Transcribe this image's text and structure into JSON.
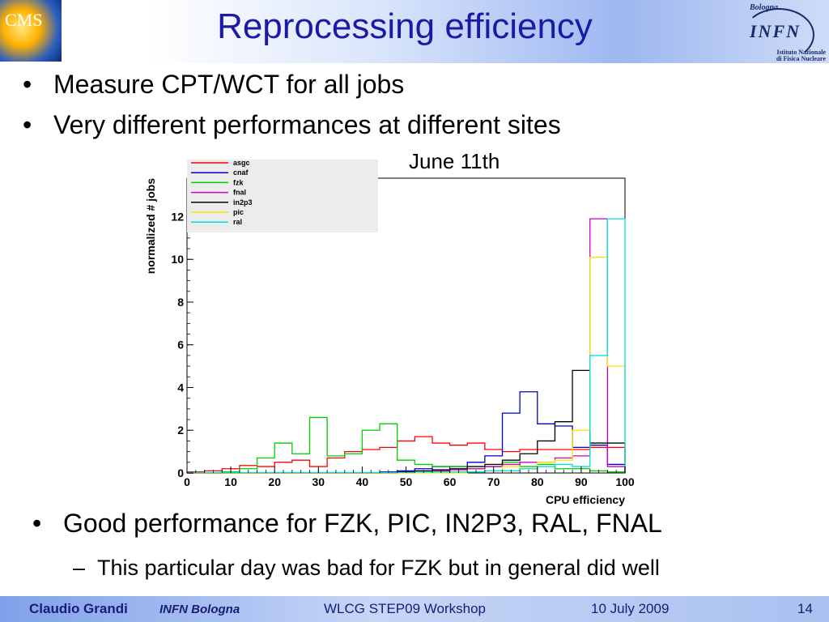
{
  "header": {
    "title": "Reprocessing efficiency",
    "left_logo_text": "CMS",
    "right_logo": {
      "city": "Bologna",
      "name": "INFN",
      "sub1": "Istituto Nazionale",
      "sub2": "di Fisica Nucleare"
    }
  },
  "bullets": [
    "Measure CPT/WCT for all jobs",
    "Very different performances at different sites"
  ],
  "chart_annotation": "June 11th",
  "bullets_after": {
    "main": "Good performance for FZK, PIC, IN2P3, RAL, FNAL",
    "sub": "This particular day was bad for FZK but in general did well"
  },
  "footer": {
    "author": "Claudio Grandi",
    "institution": "INFN Bologna",
    "conference": "WLCG STEP09 Workshop",
    "date": "10 July 2009",
    "page": "14"
  },
  "chart_data": {
    "type": "histogram",
    "xlabel": "CPU efficiency",
    "ylabel": "normalized # jobs",
    "xlim": [
      0,
      100
    ],
    "ylim": [
      0,
      13.8
    ],
    "x_ticks": [
      0,
      10,
      20,
      30,
      40,
      50,
      60,
      70,
      80,
      90,
      100
    ],
    "y_ticks": [
      0,
      2,
      4,
      6,
      8,
      10,
      12
    ],
    "bin_edges": [
      0,
      4,
      8,
      12,
      16,
      20,
      24,
      28,
      32,
      36,
      40,
      44,
      48,
      52,
      56,
      60,
      64,
      68,
      72,
      76,
      80,
      84,
      88,
      92,
      96,
      100
    ],
    "legend_position": "top-left",
    "series": [
      {
        "name": "asgc",
        "color": "#ff0000",
        "values": [
          0.05,
          0.1,
          0.2,
          0.35,
          0.3,
          0.5,
          0.6,
          0.3,
          0.7,
          1.0,
          1.1,
          1.2,
          1.5,
          1.7,
          1.4,
          1.3,
          1.4,
          1.1,
          1.0,
          1.1,
          1.1,
          1.1,
          1.1,
          1.2,
          1.2
        ]
      },
      {
        "name": "cnaf",
        "color": "#0000cc",
        "values": [
          0,
          0,
          0,
          0,
          0,
          0,
          0,
          0,
          0,
          0,
          0,
          0.05,
          0.1,
          0.2,
          0.3,
          0.3,
          0.5,
          0.8,
          2.8,
          3.8,
          2.3,
          2.2,
          1.2,
          1.3,
          0.4
        ]
      },
      {
        "name": "fzk",
        "color": "#00cc00",
        "values": [
          0,
          0,
          0.05,
          0.2,
          0.7,
          1.4,
          0.9,
          2.6,
          0.8,
          0.9,
          2.0,
          2.3,
          0.6,
          0.4,
          0.3,
          0.3,
          0.2,
          0.3,
          0.5,
          0.3,
          0.4,
          0.2,
          0.2,
          0.1,
          0.05
        ]
      },
      {
        "name": "fnal",
        "color": "#cc00cc",
        "values": [
          0,
          0,
          0,
          0,
          0,
          0,
          0,
          0,
          0,
          0,
          0,
          0,
          0.05,
          0.1,
          0.1,
          0.15,
          0.2,
          0.3,
          0.4,
          0.5,
          0.5,
          0.7,
          0.8,
          11.9,
          0.3
        ]
      },
      {
        "name": "in2p3",
        "color": "#000000",
        "values": [
          0,
          0,
          0,
          0,
          0,
          0,
          0,
          0,
          0,
          0,
          0,
          0,
          0.05,
          0.1,
          0.15,
          0.2,
          0.3,
          0.4,
          0.6,
          0.9,
          1.5,
          2.4,
          4.8,
          1.4,
          1.4
        ]
      },
      {
        "name": "pic",
        "color": "#ffe000",
        "values": [
          0,
          0,
          0,
          0,
          0,
          0,
          0,
          0,
          0,
          0,
          0,
          0,
          0,
          0,
          0,
          0,
          0.05,
          0.1,
          0.3,
          0.2,
          0.5,
          0.6,
          2.0,
          10.1,
          5.0
        ]
      },
      {
        "name": "ral",
        "color": "#00e0e0",
        "values": [
          0.02,
          0.02,
          0.02,
          0.02,
          0.02,
          0.02,
          0.02,
          0.02,
          0.02,
          0.02,
          0.02,
          0.02,
          0.02,
          0.05,
          0.05,
          0.05,
          0.05,
          0.1,
          0.1,
          0.2,
          0.3,
          0.4,
          0.3,
          5.5,
          11.9
        ]
      }
    ]
  }
}
